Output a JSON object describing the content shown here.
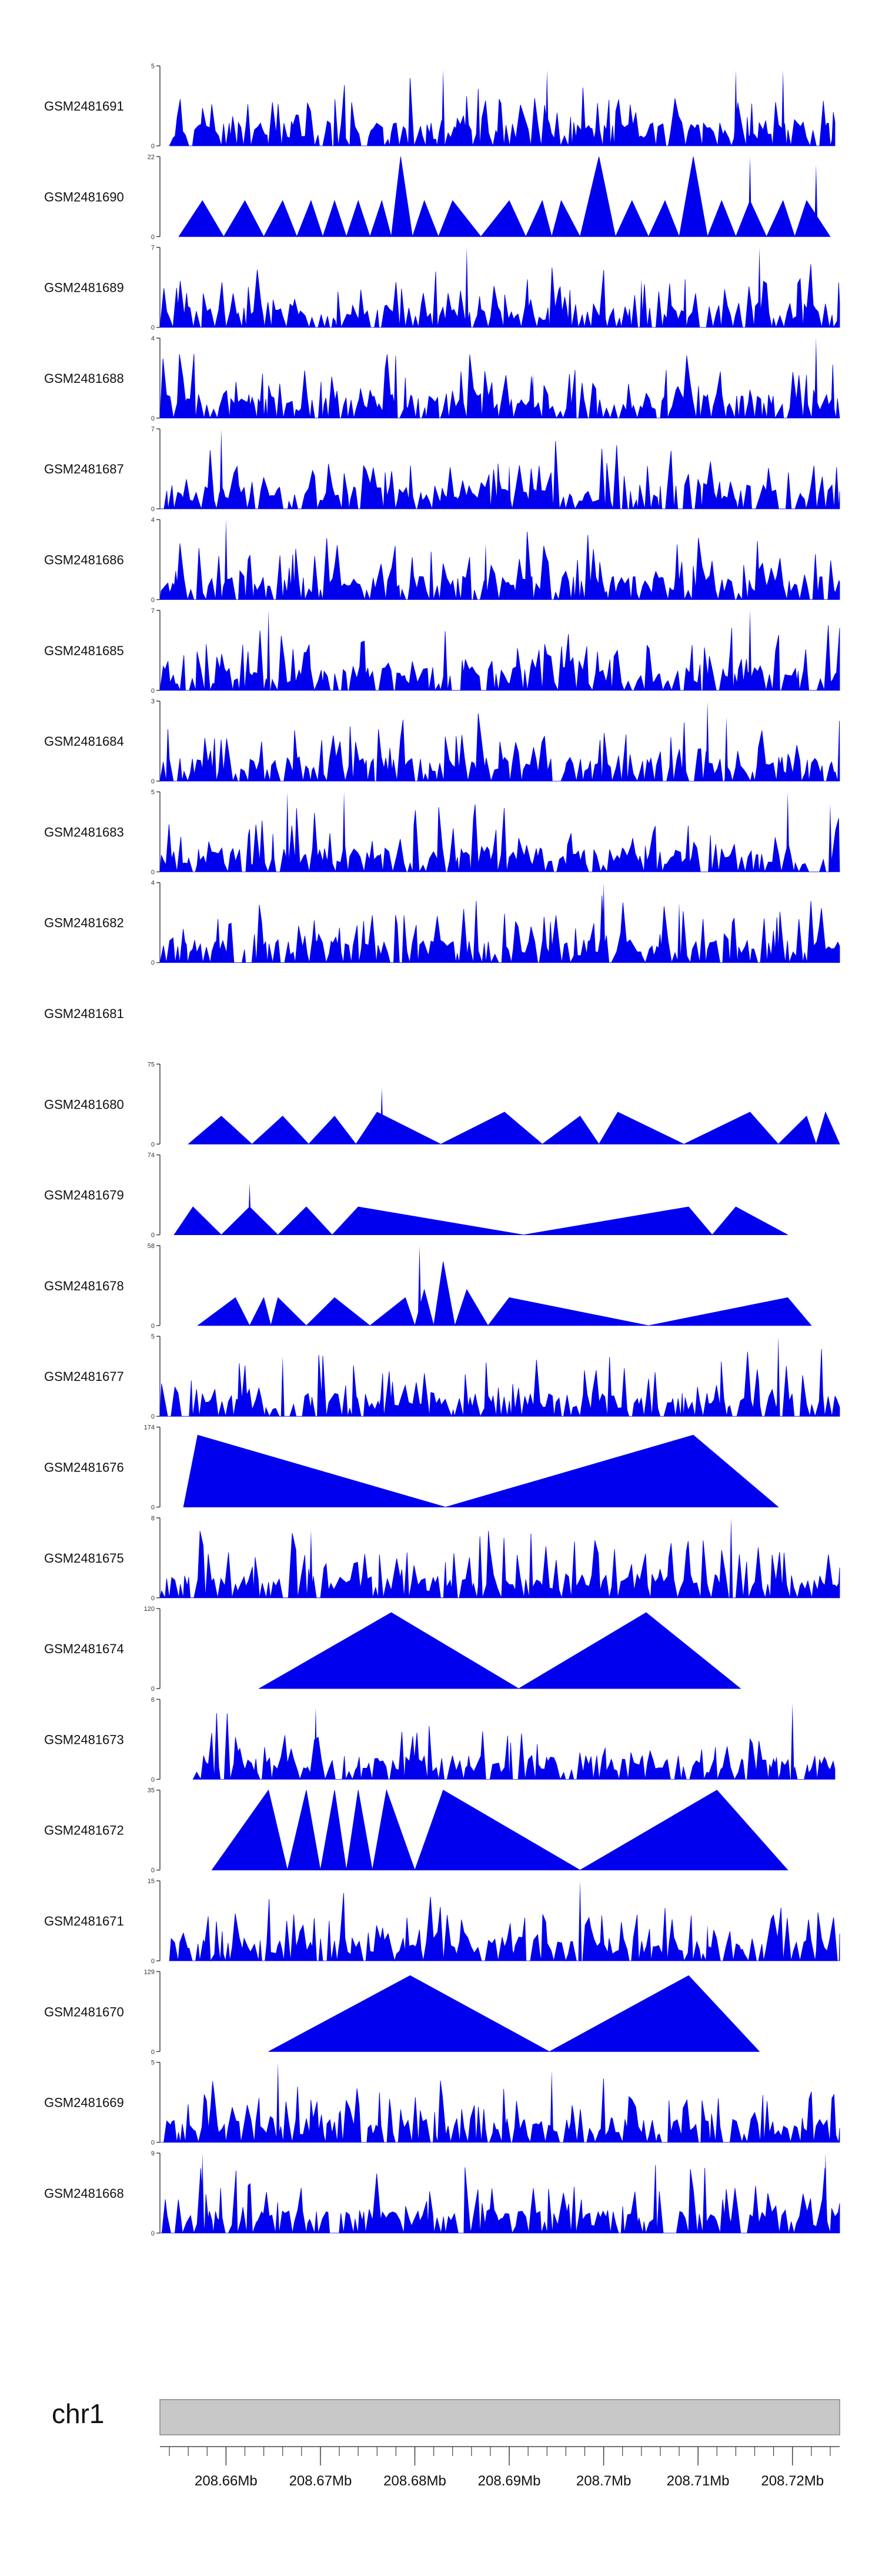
{
  "chart_data": {
    "type": "area",
    "title": "",
    "colors": {
      "fill": "#0000ee",
      "axis": "#444444",
      "ideogram": "#c8c8c8",
      "ideogram_border": "#888888"
    },
    "x_axis": {
      "chromosome": "chr1",
      "range_mb": [
        208.653,
        208.725
      ],
      "major_ticks": [
        208.66,
        208.67,
        208.68,
        208.69,
        208.7,
        208.71,
        208.72
      ],
      "major_tick_labels": [
        "208.66Mb",
        "208.67Mb",
        "208.68Mb",
        "208.69Mb",
        "208.7Mb",
        "208.71Mb",
        "208.72Mb"
      ],
      "minor_tick_step_mb": 0.002
    },
    "tracks": [
      {
        "name": "GSM2481691",
        "ymax": 5,
        "pattern": "dense",
        "seed": 11,
        "x0": 208.654,
        "x1": 208.7245,
        "peaks": [
          {
            "x": 208.683,
            "h": 0.95
          },
          {
            "x": 208.694,
            "h": 0.95
          },
          {
            "x": 208.714,
            "h": 0.95
          },
          {
            "x": 208.719,
            "h": 0.95
          }
        ]
      },
      {
        "name": "GSM2481690",
        "ymax": 22,
        "pattern": "triangles",
        "x0": 208.655,
        "x1": 208.724,
        "apexes": [
          208.6575,
          208.662,
          208.666,
          208.669,
          208.6715,
          208.674,
          208.6765,
          208.6785,
          208.681,
          208.684,
          208.69,
          208.6935,
          208.6955,
          208.6995,
          208.703,
          208.7065,
          208.7095,
          208.7125,
          208.7155,
          208.719,
          208.7215
        ],
        "heights": [
          0.45,
          0.45,
          0.45,
          0.45,
          0.45,
          0.45,
          0.45,
          1.0,
          0.45,
          0.45,
          0.45,
          0.45,
          0.45,
          1.0,
          0.45,
          0.45,
          1.0,
          0.45,
          0.45,
          0.45,
          0.45
        ],
        "peaks": [
          {
            "x": 208.7155,
            "h": 1.0
          },
          {
            "x": 208.7225,
            "h": 0.9
          }
        ]
      },
      {
        "name": "GSM2481689",
        "ymax": 7,
        "pattern": "dense",
        "seed": 23,
        "x0": 208.653,
        "x1": 208.725,
        "peaks": [
          {
            "x": 208.6855,
            "h": 1.0
          },
          {
            "x": 208.7165,
            "h": 1.0
          },
          {
            "x": 208.704,
            "h": 0.6
          }
        ]
      },
      {
        "name": "GSM2481688",
        "ymax": 4,
        "pattern": "dense",
        "seed": 37,
        "x0": 208.653,
        "x1": 208.725,
        "peaks": [
          {
            "x": 208.7225,
            "h": 1.0
          },
          {
            "x": 208.6925,
            "h": 0.55
          }
        ]
      },
      {
        "name": "GSM2481687",
        "ymax": 7,
        "pattern": "dense",
        "seed": 41,
        "x0": 208.653,
        "x1": 208.725,
        "peaks": [
          {
            "x": 208.6595,
            "h": 1.0
          },
          {
            "x": 208.69,
            "h": 0.55
          }
        ]
      },
      {
        "name": "GSM2481686",
        "ymax": 4,
        "pattern": "dense",
        "seed": 53,
        "x0": 208.653,
        "x1": 208.725,
        "peaks": [
          {
            "x": 208.66,
            "h": 1.0
          },
          {
            "x": 208.6875,
            "h": 0.7
          }
        ]
      },
      {
        "name": "GSM2481685",
        "ymax": 7,
        "pattern": "dense",
        "seed": 67,
        "x0": 208.653,
        "x1": 208.725,
        "peaks": [
          {
            "x": 208.6645,
            "h": 1.0
          },
          {
            "x": 208.7155,
            "h": 1.0
          }
        ]
      },
      {
        "name": "GSM2481684",
        "ymax": 3,
        "pattern": "dense",
        "seed": 79,
        "x0": 208.653,
        "x1": 208.725,
        "peaks": [
          {
            "x": 208.711,
            "h": 1.0
          },
          {
            "x": 208.713,
            "h": 0.8
          }
        ]
      },
      {
        "name": "GSM2481683",
        "ymax": 5,
        "pattern": "dense",
        "seed": 83,
        "x0": 208.653,
        "x1": 208.725,
        "peaks": [
          {
            "x": 208.6665,
            "h": 1.0
          },
          {
            "x": 208.6725,
            "h": 1.0
          },
          {
            "x": 208.7195,
            "h": 1.0
          },
          {
            "x": 208.724,
            "h": 0.85
          }
        ]
      },
      {
        "name": "GSM2481682",
        "ymax": 4,
        "pattern": "dense",
        "seed": 97,
        "x0": 208.653,
        "x1": 208.725,
        "peaks": [
          {
            "x": 208.7,
            "h": 1.0
          },
          {
            "x": 208.708,
            "h": 0.75
          }
        ]
      },
      {
        "name": "GSM2481681",
        "ymax": null,
        "pattern": "empty"
      },
      {
        "name": "GSM2481680",
        "ymax": 75,
        "pattern": "triangles",
        "x0": 208.656,
        "x1": 208.725,
        "apexes": [
          208.6595,
          208.666,
          208.6715,
          208.676,
          208.6895,
          208.6975,
          208.7015,
          208.7155,
          208.7215,
          208.7235
        ],
        "heights": [
          0.35,
          0.35,
          0.35,
          0.4,
          0.4,
          0.35,
          0.4,
          0.4,
          0.35,
          0.4
        ],
        "peaks": [
          {
            "x": 208.6765,
            "h": 0.7
          }
        ]
      },
      {
        "name": "GSM2481679",
        "ymax": 74,
        "pattern": "triangles",
        "x0": 208.6545,
        "x1": 208.7195,
        "apexes": [
          208.6565,
          208.6625,
          208.6685,
          208.674,
          208.709,
          208.714
        ],
        "heights": [
          0.35,
          0.35,
          0.35,
          0.35,
          0.35,
          0.35
        ],
        "peaks": [
          {
            "x": 208.6625,
            "h": 0.65
          }
        ]
      },
      {
        "name": "GSM2481678",
        "ymax": 58,
        "pattern": "triangles",
        "x0": 208.657,
        "x1": 208.722,
        "apexes": [
          208.661,
          208.664,
          208.6655,
          208.6715,
          208.679,
          208.681,
          208.683,
          208.6855,
          208.69,
          208.7195
        ],
        "heights": [
          0.35,
          0.35,
          0.35,
          0.35,
          0.35,
          0.45,
          0.8,
          0.45,
          0.35,
          0.35
        ],
        "peaks": [
          {
            "x": 208.6805,
            "h": 1.0
          }
        ]
      },
      {
        "name": "GSM2481677",
        "ymax": 5,
        "pattern": "dense",
        "seed": 101,
        "x0": 208.653,
        "x1": 208.725,
        "peaks": [
          {
            "x": 208.666,
            "h": 0.75
          },
          {
            "x": 208.7185,
            "h": 1.0
          }
        ]
      },
      {
        "name": "GSM2481676",
        "ymax": 174,
        "pattern": "triangles",
        "x0": 208.6555,
        "x1": 208.7185,
        "apexes": [
          208.657,
          208.7095
        ],
        "heights": [
          0.9,
          0.9
        ],
        "peaks": []
      },
      {
        "name": "GSM2481675",
        "ymax": 8,
        "pattern": "dense",
        "seed": 113,
        "x0": 208.653,
        "x1": 208.725,
        "peaks": [
          {
            "x": 208.669,
            "h": 0.85
          },
          {
            "x": 208.7135,
            "h": 1.0
          }
        ]
      },
      {
        "name": "GSM2481674",
        "ymax": 120,
        "pattern": "triangles",
        "x0": 208.6635,
        "x1": 208.7145,
        "apexes": [
          208.6775,
          208.7045
        ],
        "heights": [
          0.95,
          0.95
        ],
        "peaks": []
      },
      {
        "name": "GSM2481673",
        "ymax": 6,
        "pattern": "dense",
        "seed": 127,
        "x0": 208.6565,
        "x1": 208.7245,
        "peaks": [
          {
            "x": 208.6695,
            "h": 0.9
          },
          {
            "x": 208.72,
            "h": 0.95
          }
        ]
      },
      {
        "name": "GSM2481672",
        "ymax": 35,
        "pattern": "triangles",
        "x0": 208.6585,
        "x1": 208.7195,
        "apexes": [
          208.6645,
          208.6685,
          208.6715,
          208.674,
          208.677,
          208.683,
          208.712
        ],
        "heights": [
          1.0,
          1.0,
          1.0,
          1.0,
          1.0,
          1.0,
          1.0
        ],
        "peaks": []
      },
      {
        "name": "GSM2481671",
        "ymax": 15,
        "pattern": "dense",
        "seed": 131,
        "x0": 208.654,
        "x1": 208.725,
        "peaks": [
          {
            "x": 208.6975,
            "h": 1.0
          },
          {
            "x": 208.711,
            "h": 0.45
          }
        ]
      },
      {
        "name": "GSM2481670",
        "ymax": 129,
        "pattern": "triangles",
        "x0": 208.6645,
        "x1": 208.7165,
        "apexes": [
          208.6795,
          208.709
        ],
        "heights": [
          0.95,
          0.95
        ],
        "peaks": []
      },
      {
        "name": "GSM2481669",
        "ymax": 5,
        "pattern": "dense",
        "seed": 139,
        "x0": 208.653,
        "x1": 208.725,
        "peaks": [
          {
            "x": 208.6655,
            "h": 1.0
          },
          {
            "x": 208.6945,
            "h": 0.9
          }
        ]
      },
      {
        "name": "GSM2481668",
        "ymax": 9,
        "pattern": "dense",
        "seed": 149,
        "x0": 208.653,
        "x1": 208.725,
        "peaks": [
          {
            "x": 208.6575,
            "h": 1.0
          },
          {
            "x": 208.7235,
            "h": 1.0
          }
        ]
      }
    ]
  }
}
